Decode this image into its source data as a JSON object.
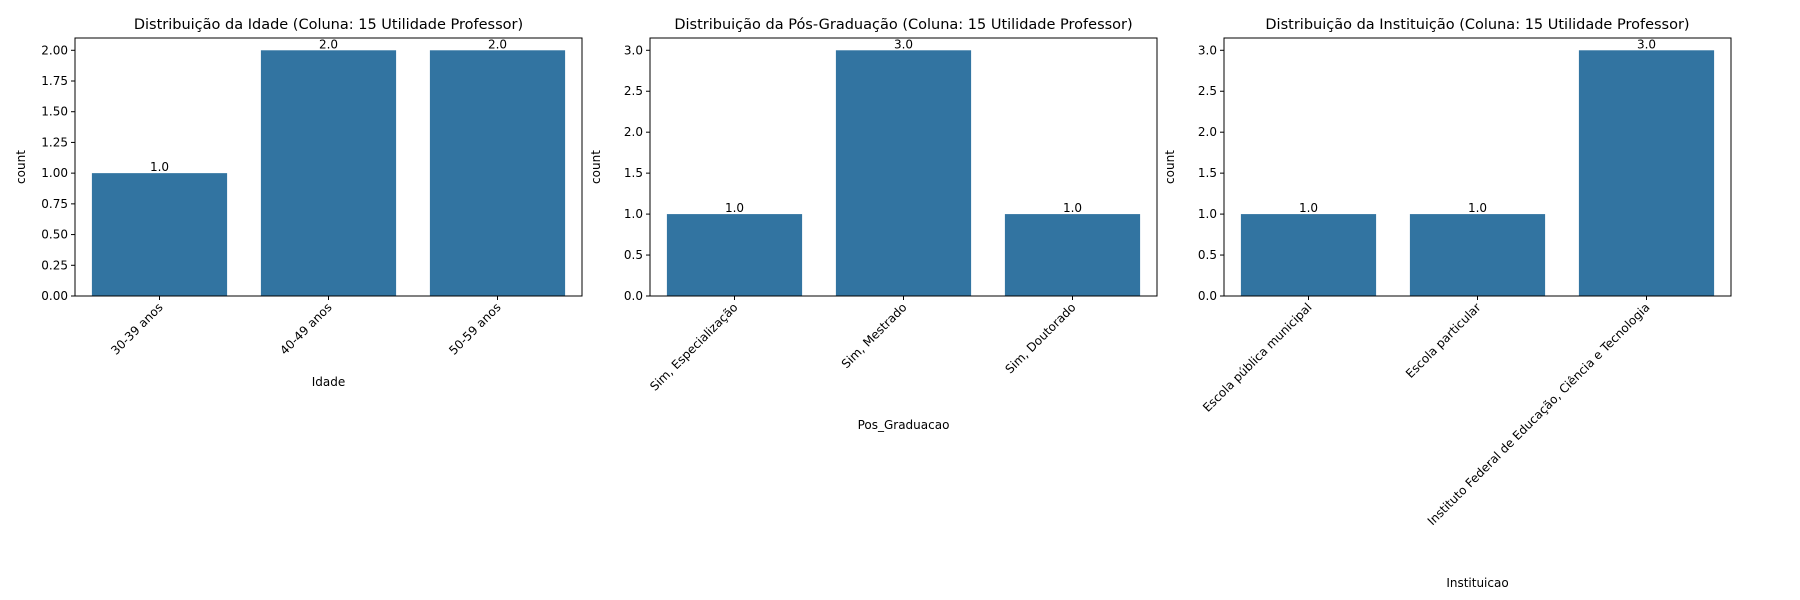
{
  "colors": {
    "bar": "#3274a1",
    "axis": "#000000",
    "background": "#ffffff"
  },
  "chart_data": [
    {
      "type": "bar",
      "title": "Distribuição da Idade (Coluna: 15 Utilidade Professor)",
      "xlabel": "Idade",
      "ylabel": "count",
      "categories": [
        "30-39 anos",
        "40-49 anos",
        "50-59 anos"
      ],
      "values": [
        1,
        2,
        2
      ],
      "data_labels": [
        "1.0",
        "2.0",
        "2.0"
      ],
      "ylim": [
        0,
        2.1
      ],
      "yticks": [
        0,
        0.25,
        0.5,
        0.75,
        1.0,
        1.25,
        1.5,
        1.75,
        2.0
      ],
      "ytick_labels": [
        "0.00",
        "0.25",
        "0.50",
        "0.75",
        "1.00",
        "1.25",
        "1.50",
        "1.75",
        "2.00"
      ],
      "xtick_rotation": 45,
      "grid": false
    },
    {
      "type": "bar",
      "title": "Distribuição da Pós-Graduação (Coluna: 15 Utilidade Professor)",
      "xlabel": "Pos_Graduacao",
      "ylabel": "count",
      "categories": [
        "Sim, Especialização",
        "Sim, Mestrado",
        "Sim, Doutorado"
      ],
      "values": [
        1,
        3,
        1
      ],
      "data_labels": [
        "1.0",
        "3.0",
        "1.0"
      ],
      "ylim": [
        0,
        3.15
      ],
      "yticks": [
        0,
        0.5,
        1.0,
        1.5,
        2.0,
        2.5,
        3.0
      ],
      "ytick_labels": [
        "0.0",
        "0.5",
        "1.0",
        "1.5",
        "2.0",
        "2.5",
        "3.0"
      ],
      "xtick_rotation": 45,
      "grid": false
    },
    {
      "type": "bar",
      "title": "Distribuição da Instituição (Coluna: 15 Utilidade Professor)",
      "xlabel": "Instituicao",
      "ylabel": "count",
      "categories": [
        "Escola pública municipal",
        "Escola particular",
        "Instituto Federal de Educação, Ciência e Tecnologia"
      ],
      "values": [
        1,
        1,
        3
      ],
      "data_labels": [
        "1.0",
        "1.0",
        "3.0"
      ],
      "ylim": [
        0,
        3.15
      ],
      "yticks": [
        0,
        0.5,
        1.0,
        1.5,
        2.0,
        2.5,
        3.0
      ],
      "ytick_labels": [
        "0.0",
        "0.5",
        "1.0",
        "1.5",
        "2.0",
        "2.5",
        "3.0"
      ],
      "xtick_rotation": 45,
      "grid": false
    }
  ]
}
